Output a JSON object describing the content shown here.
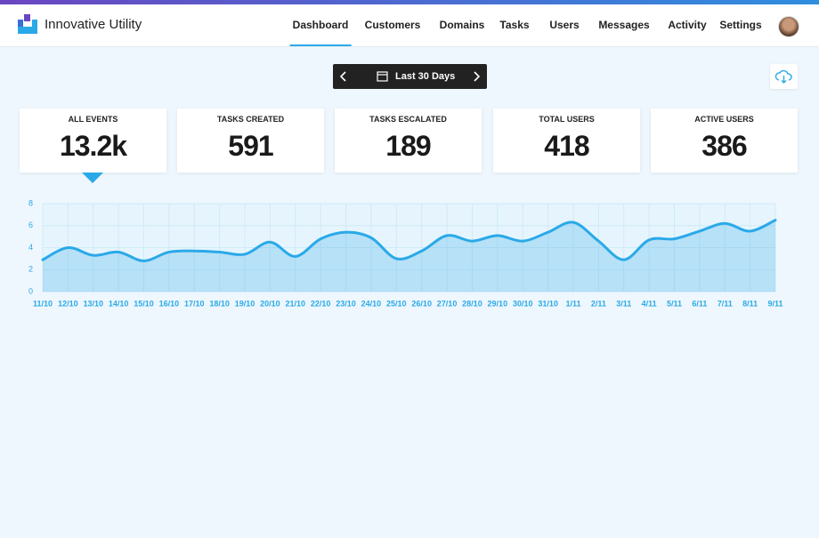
{
  "header": {
    "brand": "Innovative Utility",
    "nav": [
      "Dashboard",
      "Customers",
      "Domains",
      "Tasks",
      "Users",
      "Messages",
      "Activity",
      "Settings"
    ]
  },
  "date_range": {
    "label": "Last 30 Days"
  },
  "stats": [
    {
      "label": "ALL EVENTS",
      "value": "13.2k"
    },
    {
      "label": "TASKS CREATED",
      "value": 591
    },
    {
      "label": "TASKS ESCALATED",
      "value": 189
    },
    {
      "label": "TOTAL USERS",
      "value": 418
    },
    {
      "label": "ACTIVE USERS",
      "value": 386
    }
  ],
  "chart_data": {
    "type": "area",
    "color": "#2aa9e8",
    "grid": true,
    "categories": [
      "11/10",
      "12/10",
      "13/10",
      "14/10",
      "15/10",
      "16/10",
      "17/10",
      "18/10",
      "19/10",
      "20/10",
      "21/10",
      "22/10",
      "23/10",
      "24/10",
      "25/10",
      "26/10",
      "27/10",
      "28/10",
      "29/10",
      "30/10",
      "31/10",
      "1/11",
      "2/11",
      "3/11",
      "4/11",
      "5/11",
      "6/11",
      "7/11",
      "8/11",
      "9/11"
    ],
    "values": [
      2.9,
      4.0,
      3.3,
      3.6,
      2.8,
      3.6,
      3.7,
      3.6,
      3.4,
      4.5,
      3.2,
      4.8,
      5.4,
      4.9,
      3.0,
      3.7,
      5.1,
      4.6,
      5.1,
      4.6,
      5.4,
      6.3,
      4.6,
      2.9,
      4.7,
      4.8,
      5.5,
      6.2,
      5.5,
      6.5
    ],
    "ylim": [
      0,
      8
    ],
    "yticks": [
      0,
      2,
      4,
      6,
      8
    ]
  }
}
